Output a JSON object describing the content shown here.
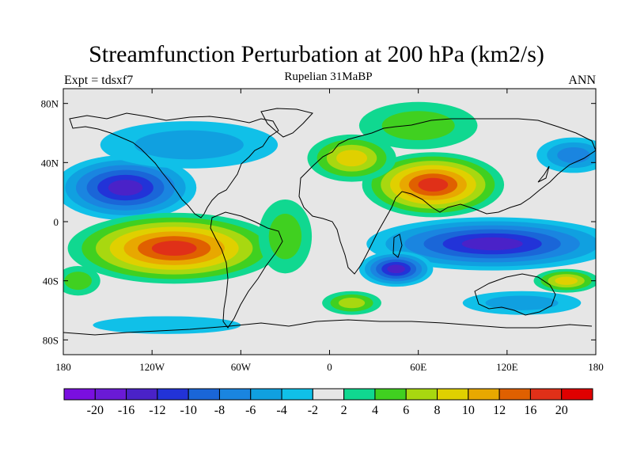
{
  "title": "Streamfunction Perturbation at 200 hPa (km2/s)",
  "subtitle": "Rupelian  31MaBP",
  "left_label": "Expt = tdsxf7",
  "right_label": "ANN",
  "lon_ticks": [
    {
      "lon": -180,
      "label": "180"
    },
    {
      "lon": -120,
      "label": "120W"
    },
    {
      "lon": -60,
      "label": "60W"
    },
    {
      "lon": 0,
      "label": "0"
    },
    {
      "lon": 60,
      "label": "60E"
    },
    {
      "lon": 120,
      "label": "120E"
    },
    {
      "lon": 180,
      "label": "180"
    }
  ],
  "lat_ticks": [
    {
      "lat": 80,
      "label": "80N"
    },
    {
      "lat": 40,
      "label": "40N"
    },
    {
      "lat": 0,
      "label": "0"
    },
    {
      "lat": -40,
      "label": "40S"
    },
    {
      "lat": -80,
      "label": "80S"
    }
  ],
  "colorbar": {
    "colors": [
      "#7a0fe0",
      "#6a1ad6",
      "#4a22c8",
      "#2233d8",
      "#1a66d8",
      "#1a85e0",
      "#10a0e0",
      "#10c0e8",
      "#e6e6e6",
      "#10d890",
      "#40d020",
      "#a8d810",
      "#e0d000",
      "#e8a800",
      "#e06000",
      "#e03018",
      "#e00000"
    ],
    "labels": [
      "-20",
      "-16",
      "-12",
      "-10",
      "-8",
      "-6",
      "-4",
      "-2",
      "2",
      "4",
      "6",
      "8",
      "10",
      "12",
      "16",
      "20"
    ]
  },
  "map": {
    "background_color": "#e6e6e6",
    "lon_range": [
      -180,
      180
    ],
    "lat_range": [
      -90,
      90
    ],
    "features": [
      {
        "name": "north-pacific-low",
        "lon": -138,
        "lat": 23,
        "rx": 48,
        "ry": 22,
        "value": -12
      },
      {
        "name": "south-pacific-high",
        "lon": -105,
        "lat": -18,
        "rx": 72,
        "ry": 24,
        "value": 16
      },
      {
        "name": "indian-ocean-low",
        "lon": 110,
        "lat": -15,
        "rx": 85,
        "ry": 18,
        "value": -12
      },
      {
        "name": "south-africa-low",
        "lon": 45,
        "lat": -32,
        "rx": 25,
        "ry": 12,
        "value": -12
      },
      {
        "name": "asia-high",
        "lon": 70,
        "lat": 25,
        "rx": 48,
        "ry": 22,
        "value": 16
      },
      {
        "name": "europe-high",
        "lon": 15,
        "lat": 43,
        "rx": 30,
        "ry": 16,
        "value": 8
      },
      {
        "name": "north-atlantic-low",
        "lon": -95,
        "lat": 52,
        "rx": 60,
        "ry": 16,
        "value": -4
      },
      {
        "name": "arctic-asia-high",
        "lon": 60,
        "lat": 65,
        "rx": 40,
        "ry": 16,
        "value": 4
      },
      {
        "name": "pacific-west-low",
        "lon": 165,
        "lat": 45,
        "rx": 25,
        "ry": 12,
        "value": -6
      },
      {
        "name": "australia-high",
        "lon": 160,
        "lat": -40,
        "rx": 22,
        "ry": 8,
        "value": 8
      },
      {
        "name": "atlantic-south-high",
        "lon": -30,
        "lat": -10,
        "rx": 18,
        "ry": 25,
        "value": 4
      },
      {
        "name": "south-atlantic-high",
        "lon": 15,
        "lat": -55,
        "rx": 20,
        "ry": 8,
        "value": 6
      },
      {
        "name": "southern-ocean-low",
        "lon": 130,
        "lat": -55,
        "rx": 40,
        "ry": 8,
        "value": -4
      },
      {
        "name": "antarctic-pacific-low",
        "lon": -110,
        "lat": -70,
        "rx": 50,
        "ry": 6,
        "value": -2
      },
      {
        "name": "east-pacific-high-tail",
        "lon": -170,
        "lat": -40,
        "rx": 15,
        "ry": 10,
        "value": 4
      }
    ]
  }
}
